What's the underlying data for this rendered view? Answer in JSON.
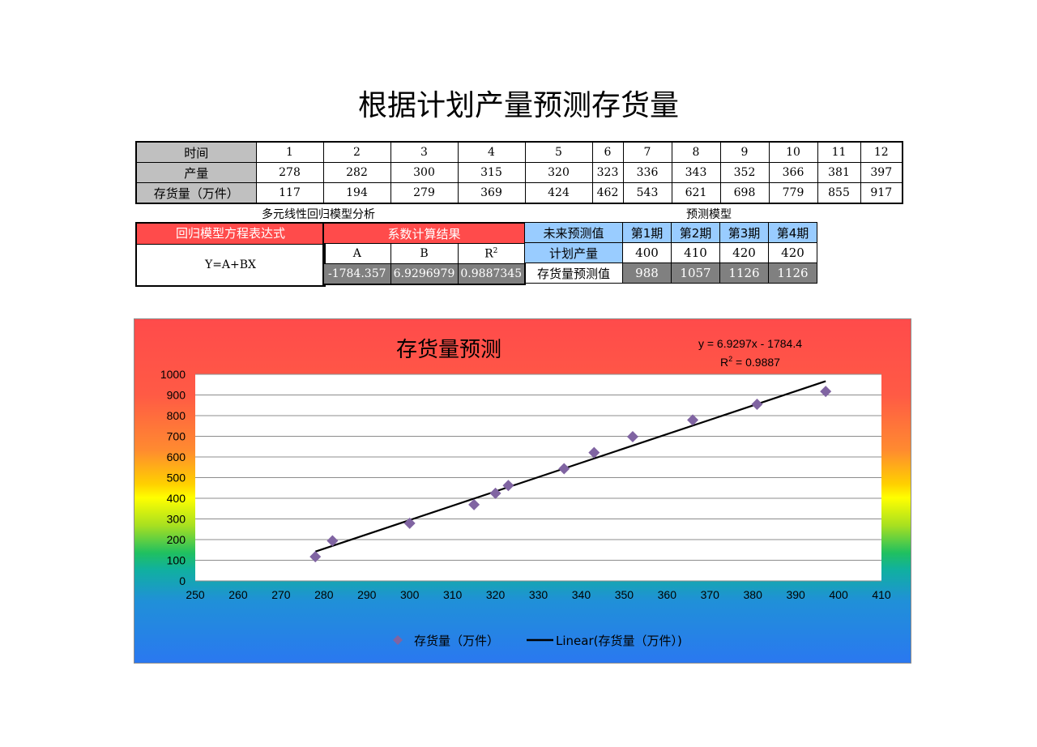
{
  "title": "根据计划产量预测存货量",
  "data_table": {
    "rows": [
      {
        "label": "时间",
        "values": [
          "1",
          "2",
          "3",
          "4",
          "5",
          "6",
          "7",
          "8",
          "9",
          "10",
          "11",
          "12"
        ]
      },
      {
        "label": "产量",
        "values": [
          "278",
          "282",
          "300",
          "315",
          "320",
          "323",
          "336",
          "343",
          "352",
          "366",
          "381",
          "397"
        ]
      },
      {
        "label": "存货量（万件）",
        "values": [
          "117",
          "194",
          "279",
          "369",
          "424",
          "462",
          "543",
          "621",
          "698",
          "779",
          "855",
          "917"
        ]
      }
    ]
  },
  "regression": {
    "heading": "多元线性回归模型分析",
    "expr_header": "回归模型方程表达式",
    "expr": "Y=A+BX",
    "coef_header": "系数计算结果",
    "coef_labels": {
      "a": "A",
      "b": "B",
      "r2": "R",
      "r2_sup": "2"
    },
    "coef_values": {
      "a": "-1784.357",
      "b": "6.9296979",
      "r2": "0.9887345"
    }
  },
  "prediction": {
    "heading": "预测模型",
    "corner": "未来预测值",
    "periods": [
      "第1期",
      "第2期",
      "第3期",
      "第4期"
    ],
    "plan_label": "计划产量",
    "plan_values": [
      "400",
      "410",
      "420",
      "420"
    ],
    "inventory_label": "存货量预测值",
    "inventory_values": [
      "988",
      "1057",
      "1126",
      "1126"
    ]
  },
  "chart_data": {
    "type": "scatter",
    "title": "存货量预测",
    "equation": "y = 6.9297x - 1784.4",
    "r2_text_main": "R",
    "r2_text_sup": "2",
    "r2_text_rest": " = 0.9887",
    "xlim": [
      250,
      410
    ],
    "ylim": [
      0,
      1000
    ],
    "x_ticks": [
      250,
      260,
      270,
      280,
      290,
      300,
      310,
      320,
      330,
      340,
      350,
      360,
      370,
      380,
      390,
      400,
      410
    ],
    "y_ticks": [
      0,
      100,
      200,
      300,
      400,
      500,
      600,
      700,
      800,
      900,
      1000
    ],
    "grid": true,
    "legend_position": "bottom",
    "series": [
      {
        "name": "存货量（万件）",
        "marker": "diamond",
        "color": "#8064a2",
        "x": [
          278,
          282,
          300,
          315,
          320,
          323,
          336,
          343,
          352,
          366,
          381,
          397
        ],
        "y": [
          117,
          194,
          279,
          369,
          424,
          462,
          543,
          621,
          698,
          779,
          855,
          917
        ]
      }
    ],
    "trendline": {
      "name": "Linear(存货量（万件）)",
      "slope": 6.9297,
      "intercept": -1784.4,
      "x_range": [
        278,
        397
      ],
      "color": "#000000"
    },
    "legend_labels": {
      "points": "存货量（万件）",
      "trend": "Linear(存货量（万件）)"
    }
  }
}
